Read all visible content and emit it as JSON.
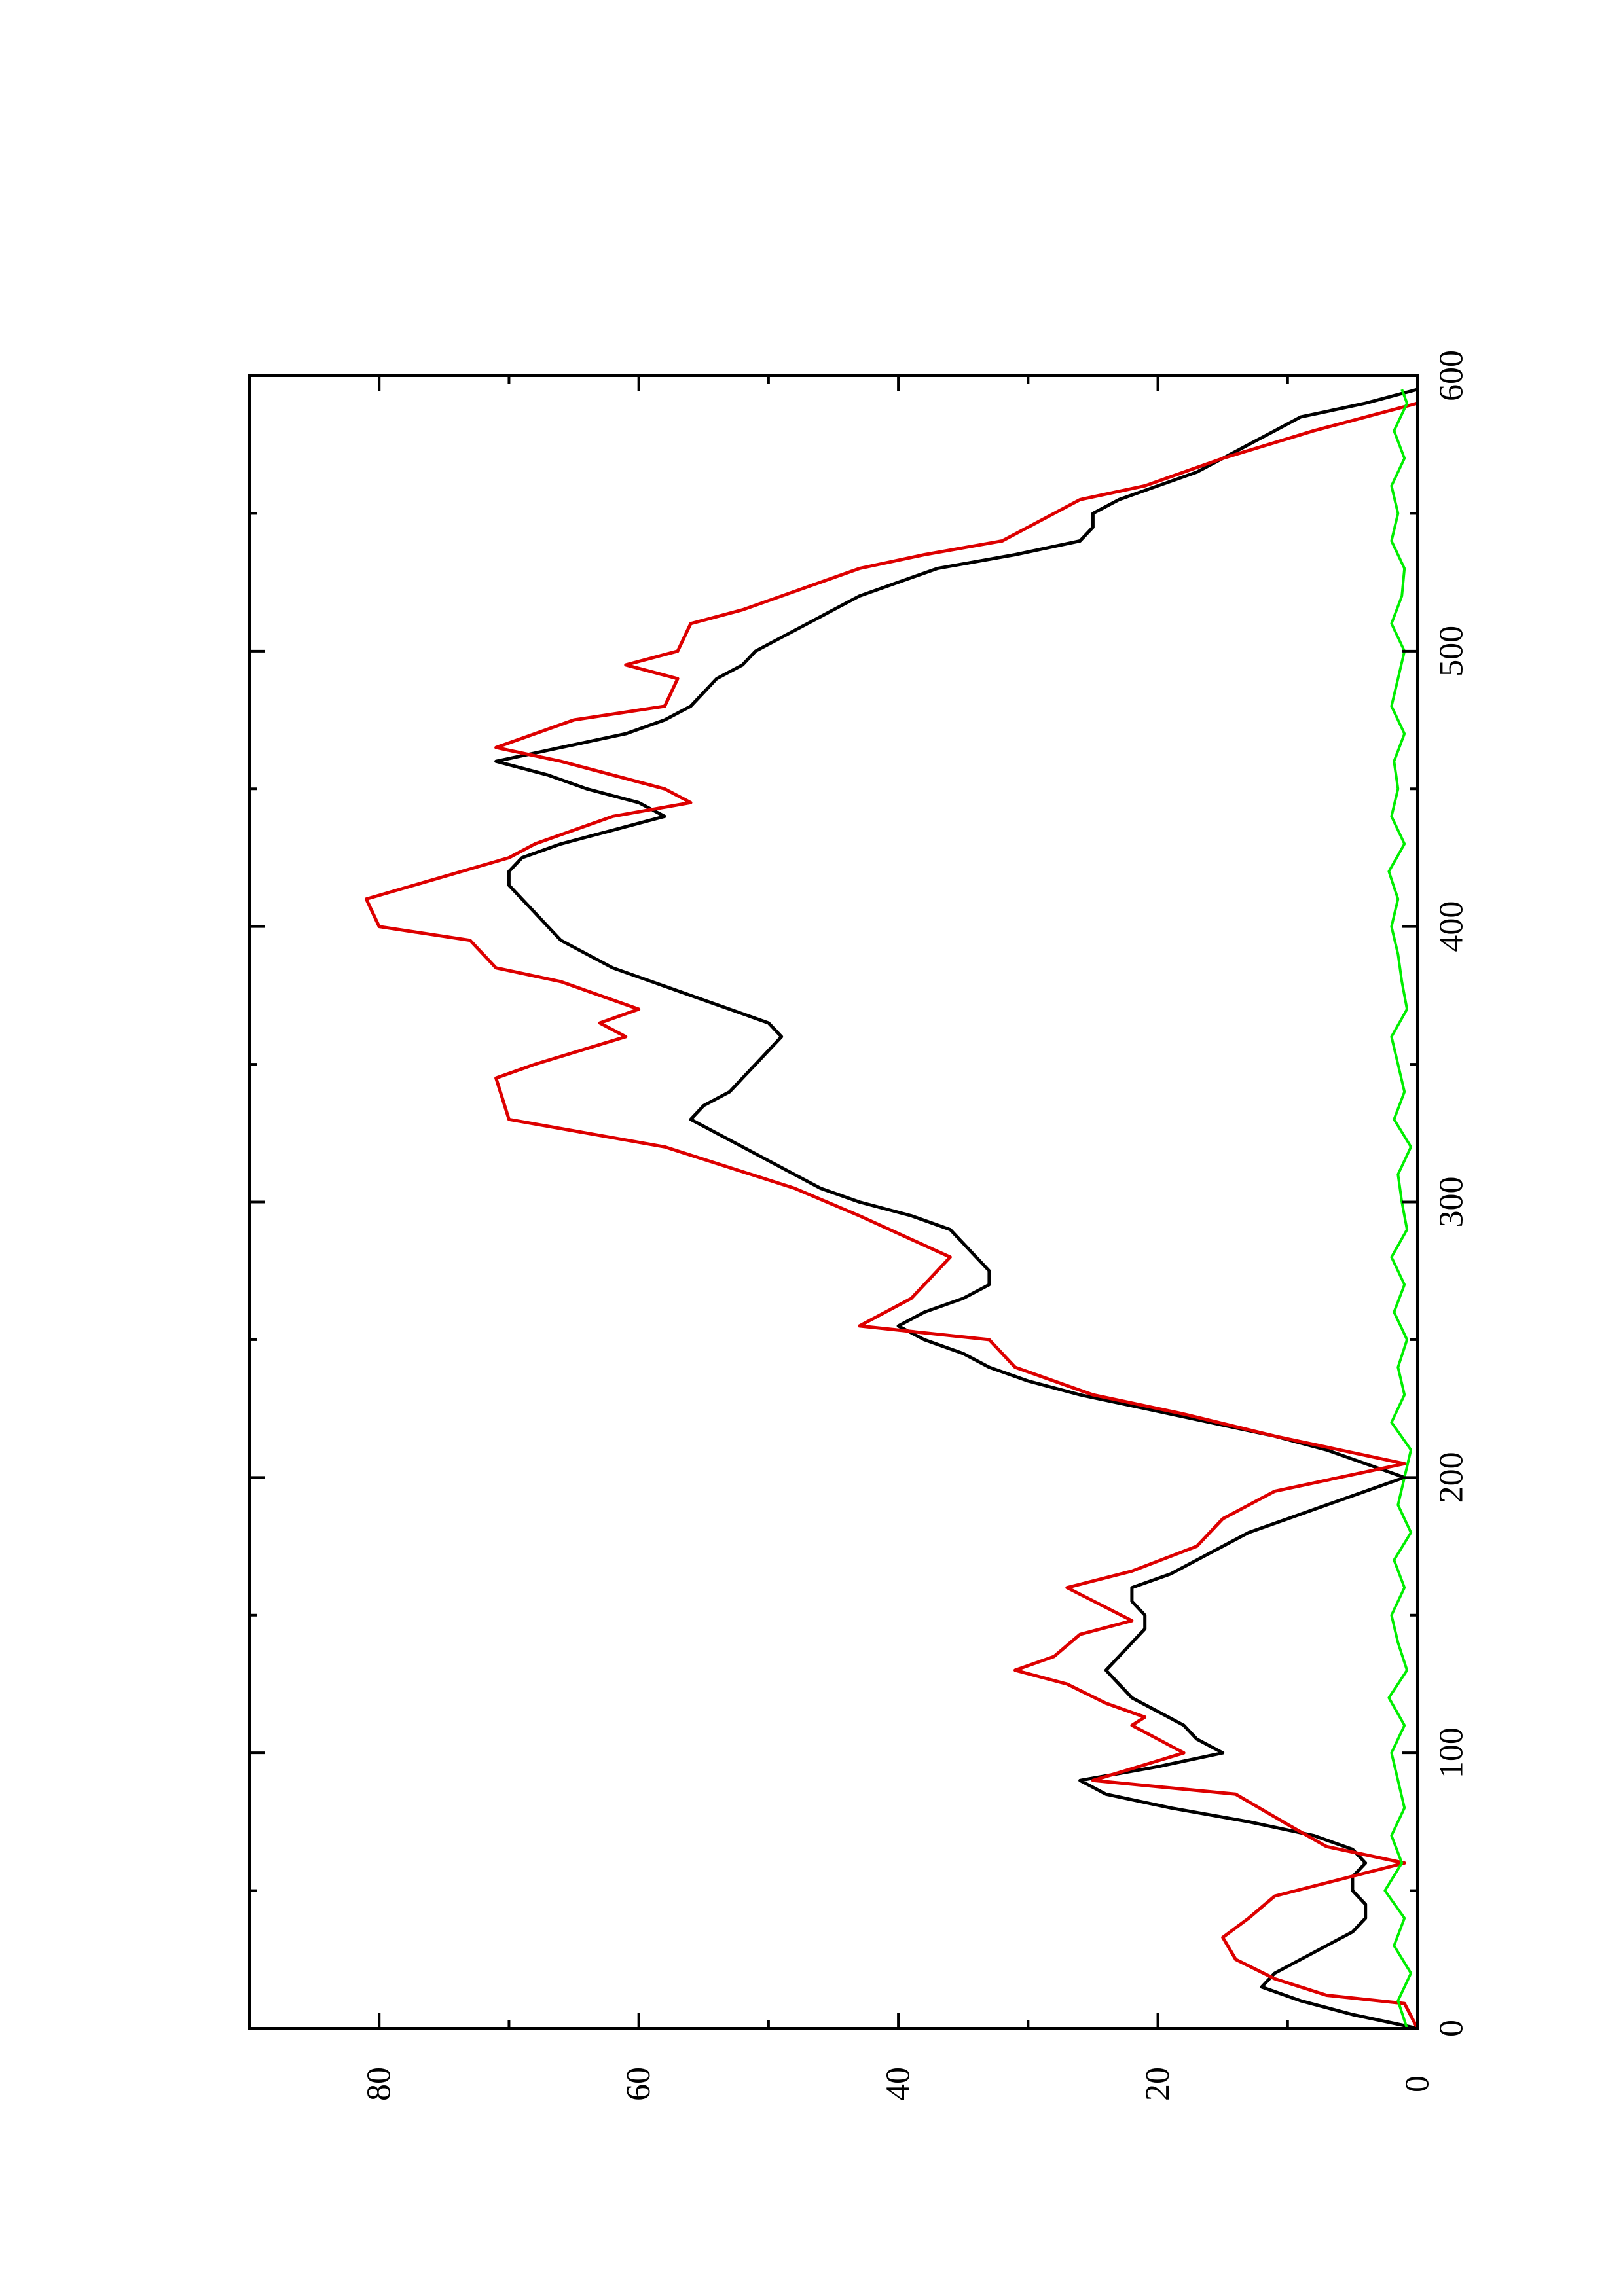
{
  "chart_data": {
    "type": "line",
    "orientation": "rotated-90-ccw",
    "title": "",
    "xlabel": "",
    "ylabel": "",
    "xlim": [
      0,
      600
    ],
    "ylim": [
      0,
      90
    ],
    "x_ticks": [
      "0",
      "100",
      "200",
      "300",
      "400",
      "500",
      "600"
    ],
    "y_ticks": [
      "0",
      "20",
      "40",
      "60",
      "80"
    ],
    "grid": false,
    "legend": "none",
    "series": [
      {
        "color": "#000000",
        "x": [
          0,
          5,
          10,
          15,
          20,
          25,
          30,
          35,
          40,
          45,
          50,
          55,
          60,
          65,
          70,
          75,
          80,
          85,
          90,
          95,
          100,
          105,
          110,
          115,
          120,
          125,
          130,
          135,
          140,
          145,
          150,
          155,
          160,
          165,
          170,
          175,
          180,
          185,
          190,
          195,
          200,
          205,
          210,
          215,
          220,
          225,
          230,
          235,
          240,
          245,
          250,
          255,
          260,
          265,
          270,
          275,
          280,
          285,
          290,
          295,
          300,
          305,
          310,
          315,
          320,
          325,
          330,
          335,
          340,
          345,
          350,
          355,
          360,
          365,
          370,
          375,
          380,
          385,
          390,
          395,
          400,
          405,
          410,
          415,
          420,
          425,
          430,
          435,
          440,
          445,
          450,
          455,
          460,
          465,
          470,
          475,
          480,
          485,
          490,
          495,
          500,
          505,
          510,
          515,
          520,
          525,
          530,
          535,
          540,
          545,
          550,
          555,
          560,
          565,
          570,
          575,
          580,
          585,
          590,
          595
        ],
        "values": [
          0,
          5,
          9,
          12,
          11,
          9,
          7,
          5,
          4,
          4,
          5,
          5,
          4,
          5,
          8,
          13,
          19,
          24,
          26,
          20,
          15,
          17,
          18,
          20,
          22,
          23,
          24,
          23,
          22,
          21,
          21,
          22,
          22,
          19,
          17,
          15,
          13,
          10,
          7,
          4,
          1,
          4,
          7,
          11,
          16,
          21,
          26,
          30,
          33,
          35,
          38,
          40,
          38,
          35,
          33,
          33,
          34,
          35,
          36,
          39,
          43,
          46,
          48,
          50,
          52,
          54,
          56,
          55,
          53,
          52,
          51,
          50,
          49,
          50,
          53,
          56,
          59,
          62,
          64,
          66,
          67,
          68,
          69,
          70,
          70,
          69,
          66,
          62,
          58,
          60,
          64,
          67,
          71,
          66,
          61,
          58,
          56,
          55,
          54,
          52,
          51,
          49,
          47,
          45,
          43,
          40,
          37,
          31,
          26,
          25,
          25,
          23,
          20,
          17,
          15,
          13,
          11,
          9,
          4,
          0
        ]
      },
      {
        "color": "#dd0000",
        "x": [
          0,
          9,
          12,
          18,
          25,
          33,
          40,
          48,
          60,
          66,
          74,
          85,
          90,
          100,
          110,
          113,
          118,
          125,
          130,
          135,
          143,
          148,
          160,
          166,
          175,
          185,
          195,
          205,
          215,
          223,
          230,
          240,
          250,
          255,
          265,
          280,
          295,
          305,
          320,
          330,
          345,
          350,
          360,
          365,
          370,
          380,
          385,
          395,
          400,
          410,
          425,
          430,
          440,
          445,
          450,
          460,
          465,
          475,
          480,
          490,
          495,
          500,
          510,
          515,
          520,
          530,
          535,
          540,
          550,
          555,
          560,
          570,
          580,
          590
        ],
        "values": [
          0,
          1,
          7,
          11,
          14,
          15,
          13,
          11,
          1,
          7,
          10,
          14,
          25,
          18,
          22,
          21,
          24,
          27,
          31,
          28,
          26,
          22,
          27,
          22,
          17,
          15,
          11,
          1,
          11,
          18,
          25,
          31,
          33,
          43,
          39,
          36,
          43,
          48,
          58,
          70,
          71,
          68,
          61,
          63,
          60,
          66,
          71,
          73,
          80,
          81,
          70,
          68,
          62,
          56,
          58,
          66,
          71,
          65,
          58,
          57,
          61,
          57,
          56,
          52,
          49,
          43,
          38,
          32,
          28,
          26,
          21,
          15,
          8,
          0
        ]
      },
      {
        "color": "#00ee00",
        "x": [
          0,
          10,
          20,
          30,
          40,
          50,
          60,
          70,
          80,
          90,
          100,
          110,
          120,
          130,
          140,
          150,
          160,
          170,
          180,
          190,
          200,
          210,
          220,
          230,
          240,
          250,
          260,
          270,
          280,
          290,
          300,
          310,
          320,
          330,
          340,
          350,
          360,
          370,
          380,
          390,
          400,
          410,
          420,
          430,
          440,
          450,
          460,
          470,
          480,
          490,
          500,
          510,
          520,
          530,
          540,
          550,
          560,
          570,
          580,
          590,
          595
        ],
        "values": [
          0.8,
          1.5,
          0.5,
          1.8,
          1.0,
          2.5,
          1.2,
          2.0,
          1.0,
          1.5,
          2.0,
          1.0,
          2.2,
          0.8,
          1.5,
          2.0,
          1.0,
          1.8,
          0.5,
          1.5,
          1.0,
          0.5,
          2.0,
          1.0,
          1.5,
          0.8,
          1.8,
          1.0,
          2.0,
          0.8,
          1.2,
          1.5,
          0.5,
          1.8,
          1.0,
          1.5,
          2.0,
          0.8,
          1.2,
          1.5,
          2.0,
          1.5,
          2.2,
          1.0,
          2.0,
          1.5,
          1.8,
          1.0,
          2.0,
          1.5,
          1.0,
          2.0,
          1.2,
          1.0,
          2.0,
          1.5,
          2.0,
          1.0,
          1.8,
          0.8,
          1.2
        ]
      }
    ]
  }
}
